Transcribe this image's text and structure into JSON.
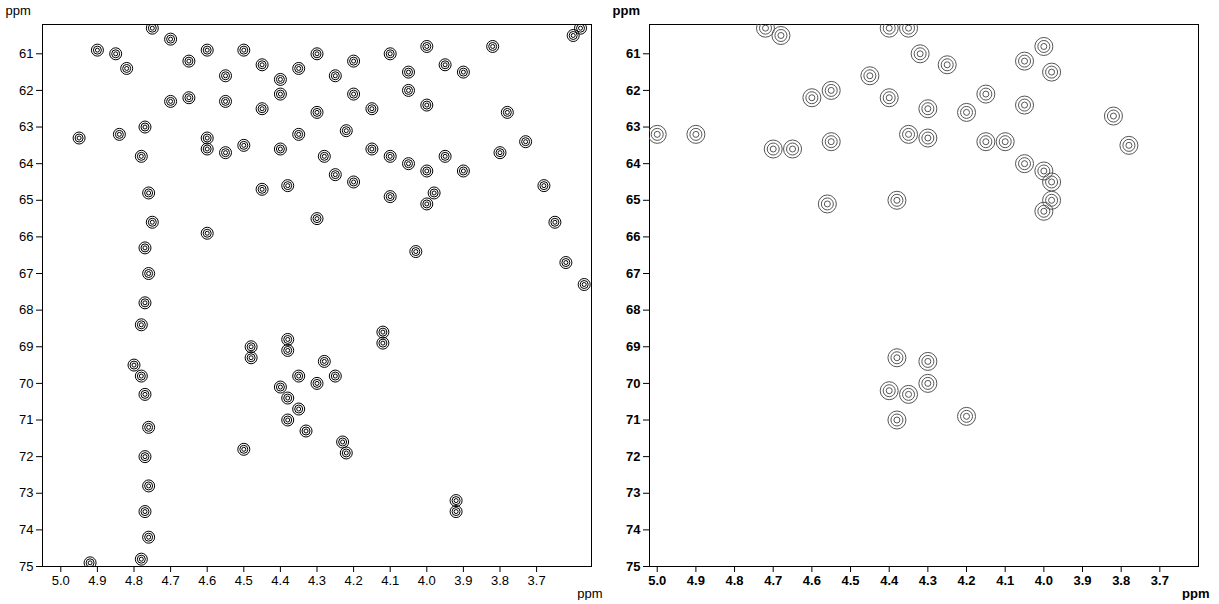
{
  "chart_data": [
    {
      "type": "contour",
      "xlabel": "ppm",
      "ylabel": "ppm",
      "color": "#000000",
      "xlim": [
        5.05,
        3.55
      ],
      "ylim": [
        60.2,
        75
      ],
      "xticks": [
        {
          "value": 5,
          "label": "5.0"
        },
        4.9,
        4.8,
        4.7,
        4.6,
        4.5,
        4.4,
        4.3,
        4.2,
        4.1,
        {
          "value": 4,
          "label": "4.0"
        },
        3.9,
        3.8,
        3.7
      ],
      "yticks": [
        61,
        62,
        63,
        64,
        65,
        66,
        67,
        68,
        69,
        70,
        71,
        72,
        73,
        74,
        75
      ],
      "x": [
        4.9,
        4.85,
        4.82,
        4.7,
        4.75,
        4.65,
        4.6,
        4.55,
        4.5,
        4.45,
        4.4,
        4.35,
        4.3,
        4.25,
        4.2,
        4.1,
        4.05,
        4.0,
        3.95,
        3.9,
        3.82,
        3.6,
        3.58,
        4.7,
        4.65,
        4.55,
        4.45,
        4.4,
        4.3,
        4.2,
        4.15,
        4.05,
        4.0,
        3.78,
        4.6,
        4.6,
        4.55,
        4.5,
        4.4,
        4.35,
        4.28,
        4.22,
        4.15,
        4.1,
        4.05,
        4.0,
        3.95,
        3.9,
        3.73,
        3.8,
        4.45,
        4.38,
        4.25,
        4.2,
        4.1,
        4.0,
        3.98,
        3.68,
        4.3,
        4.6,
        3.65,
        4.03,
        3.62,
        3.57,
        4.48,
        4.48,
        4.38,
        4.38,
        4.12,
        4.12,
        4.35,
        4.4,
        4.3,
        4.25,
        4.28,
        4.38,
        4.35,
        4.38,
        4.33,
        4.23,
        4.22,
        4.5,
        3.92,
        3.92,
        4.77,
        4.78,
        4.76,
        4.75,
        4.77,
        4.76,
        4.77,
        4.78,
        4.8,
        4.78,
        4.77,
        4.76,
        4.77,
        4.76,
        4.77,
        4.76,
        4.78,
        4.92,
        4.95,
        4.84
      ],
      "y": [
        60.9,
        61.0,
        61.4,
        60.6,
        60.3,
        61.2,
        60.9,
        61.6,
        60.9,
        61.3,
        61.7,
        61.4,
        61.0,
        61.6,
        61.2,
        61.0,
        61.5,
        60.8,
        61.3,
        61.5,
        60.8,
        60.5,
        60.3,
        62.3,
        62.2,
        62.3,
        62.5,
        62.1,
        62.6,
        62.1,
        62.5,
        62.0,
        62.4,
        62.6,
        63.3,
        63.6,
        63.7,
        63.5,
        63.6,
        63.2,
        63.8,
        63.1,
        63.6,
        63.8,
        64.0,
        64.2,
        63.8,
        64.2,
        63.4,
        63.7,
        64.7,
        64.6,
        64.3,
        64.5,
        64.9,
        65.1,
        64.8,
        64.6,
        65.5,
        65.9,
        65.6,
        66.4,
        66.7,
        67.3,
        69.0,
        69.3,
        68.8,
        69.1,
        68.6,
        68.9,
        69.8,
        70.1,
        70.0,
        69.8,
        69.4,
        70.4,
        70.7,
        71.0,
        71.3,
        71.6,
        71.9,
        71.8,
        73.2,
        73.5,
        63.0,
        63.8,
        64.8,
        65.6,
        66.3,
        67.0,
        67.8,
        68.4,
        69.5,
        69.8,
        70.3,
        71.2,
        72.0,
        72.8,
        73.5,
        74.2,
        74.8,
        74.9,
        63.3,
        63.2
      ]
    },
    {
      "type": "contour",
      "xlabel": "ppm",
      "ylabel": "ppm",
      "color": "#555555",
      "xlim": [
        5.02,
        3.6
      ],
      "ylim": [
        60.2,
        75
      ],
      "xticks": [
        {
          "value": 5,
          "label": "5.0"
        },
        4.9,
        4.8,
        4.7,
        4.6,
        4.5,
        4.4,
        4.3,
        4.2,
        4.1,
        {
          "value": 4,
          "label": "4.0"
        },
        3.9,
        3.8,
        3.7
      ],
      "yticks": [
        61,
        62,
        63,
        64,
        65,
        66,
        67,
        68,
        69,
        70,
        71,
        72,
        73,
        74,
        75
      ],
      "x": [
        4.72,
        4.68,
        4.4,
        4.35,
        4.32,
        4.25,
        4.05,
        4.0,
        3.98,
        4.45,
        4.55,
        4.6,
        4.4,
        4.3,
        4.2,
        4.05,
        3.82,
        4.55,
        4.65,
        4.7,
        4.35,
        4.3,
        4.15,
        4.1,
        3.78,
        4.05,
        4.0,
        3.98,
        3.98,
        4.0,
        4.38,
        4.56,
        5.0,
        4.9,
        4.38,
        4.3,
        4.4,
        4.3,
        4.35,
        4.38,
        4.2,
        4.15
      ],
      "y": [
        60.3,
        60.5,
        60.3,
        60.3,
        61.0,
        61.3,
        61.2,
        60.8,
        61.5,
        61.6,
        62.0,
        62.2,
        62.2,
        62.5,
        62.6,
        62.4,
        62.7,
        63.4,
        63.6,
        63.6,
        63.2,
        63.3,
        63.4,
        63.4,
        63.5,
        64.0,
        64.2,
        64.5,
        65.0,
        65.3,
        65.0,
        65.1,
        63.2,
        63.2,
        69.3,
        69.4,
        70.2,
        70.0,
        70.3,
        71.0,
        70.9,
        62.1
      ]
    }
  ]
}
